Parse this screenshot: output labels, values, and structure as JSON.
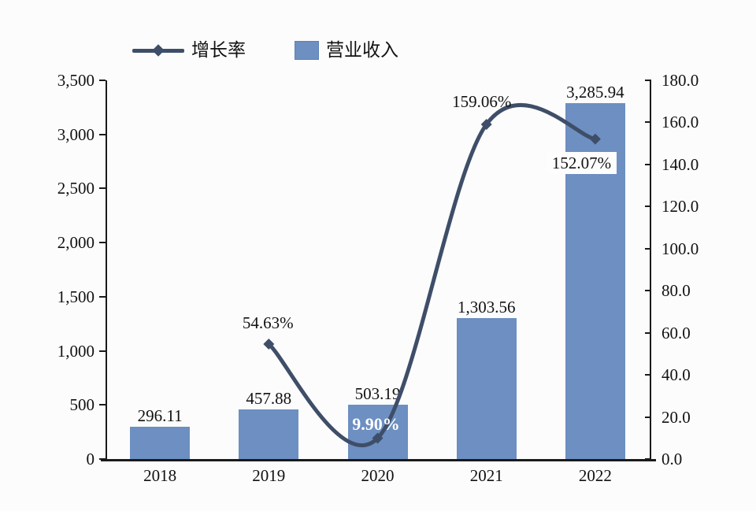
{
  "colors": {
    "background": "#fcfcfd",
    "bar": "#6d8fc1",
    "bar_border": "#5d81b6",
    "line": "#3f4e68",
    "axis": "#1a1a1a",
    "text": "#111111",
    "label_box": "#fdfdfe"
  },
  "legend": {
    "growth_rate_label": "增长率",
    "revenue_label": "营业收入"
  },
  "chart_data": {
    "type": "bar+line",
    "title": "",
    "categories": [
      "2018",
      "2019",
      "2020",
      "2021",
      "2022"
    ],
    "series": [
      {
        "name": "营业收入",
        "type": "bar",
        "axis": "left",
        "values": [
          296.11,
          457.88,
          503.19,
          1303.56,
          3285.94
        ],
        "labels": [
          "296.11",
          "457.88",
          "503.19",
          "1,303.56",
          "3,285.94"
        ],
        "color": "#6d8fc1"
      },
      {
        "name": "增长率",
        "type": "line",
        "axis": "right",
        "values": [
          null,
          54.63,
          9.9,
          159.06,
          152.07
        ],
        "labels": [
          null,
          "54.63%",
          "9.90%",
          "159.06%",
          "152.07%"
        ],
        "label_styles": [
          null,
          "plain",
          "inverse",
          "plain",
          "boxed"
        ],
        "label_offsets": [
          null,
          [
            -1,
            -27
          ],
          [
            -2,
            -18
          ],
          [
            -6,
            -29
          ],
          [
            -8,
            30
          ]
        ],
        "color": "#3f4e68",
        "marker": "diamond",
        "smooth": true
      }
    ],
    "left_axis": {
      "min": 0,
      "max": 3500,
      "step": 500,
      "ticks": [
        "0",
        "500",
        "1,000",
        "1,500",
        "2,000",
        "2,500",
        "3,000",
        "3,500"
      ]
    },
    "right_axis": {
      "min": 0,
      "max": 180,
      "step": 20,
      "ticks": [
        "0.0",
        "20.0",
        "40.0",
        "60.0",
        "80.0",
        "100.0",
        "120.0",
        "140.0",
        "160.0",
        "180.0"
      ]
    },
    "legend_position": "top",
    "grid": false
  }
}
